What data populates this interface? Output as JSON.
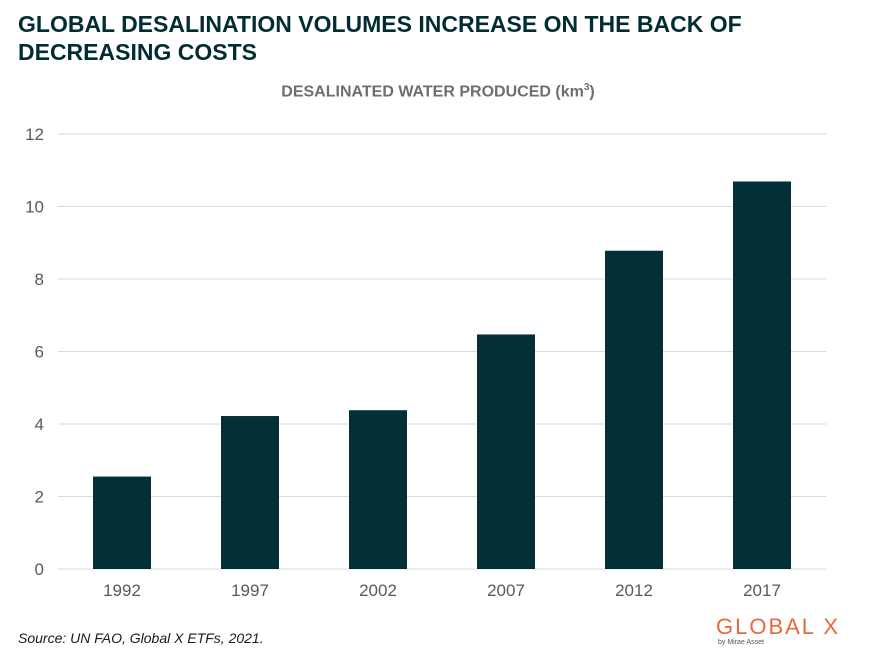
{
  "title": "GLOBAL DESALINATION VOLUMES INCREASE ON THE BACK OF DECREASING COSTS",
  "source": "Source: UN FAO, Global X ETFs, 2021.",
  "logo": {
    "main": "GLOBAL X",
    "sub": "by Mirae Asset"
  },
  "colors": {
    "bar": "#022f38",
    "grid": "#d9d9d9",
    "title": "#022c33",
    "accent": "#e8683c"
  },
  "chart_data": {
    "type": "bar",
    "title": "DESALINATED WATER PRODUCED (km",
    "title_superscript": "3",
    "title_suffix": ")",
    "categories": [
      "1992",
      "1997",
      "2002",
      "2007",
      "2012",
      "2017"
    ],
    "values": [
      2.55,
      4.22,
      4.38,
      6.47,
      8.78,
      10.69
    ],
    "ylim": [
      0,
      12
    ],
    "yticks": [
      0,
      2,
      4,
      6,
      8,
      10,
      12
    ],
    "grid": true,
    "legend": "none"
  }
}
